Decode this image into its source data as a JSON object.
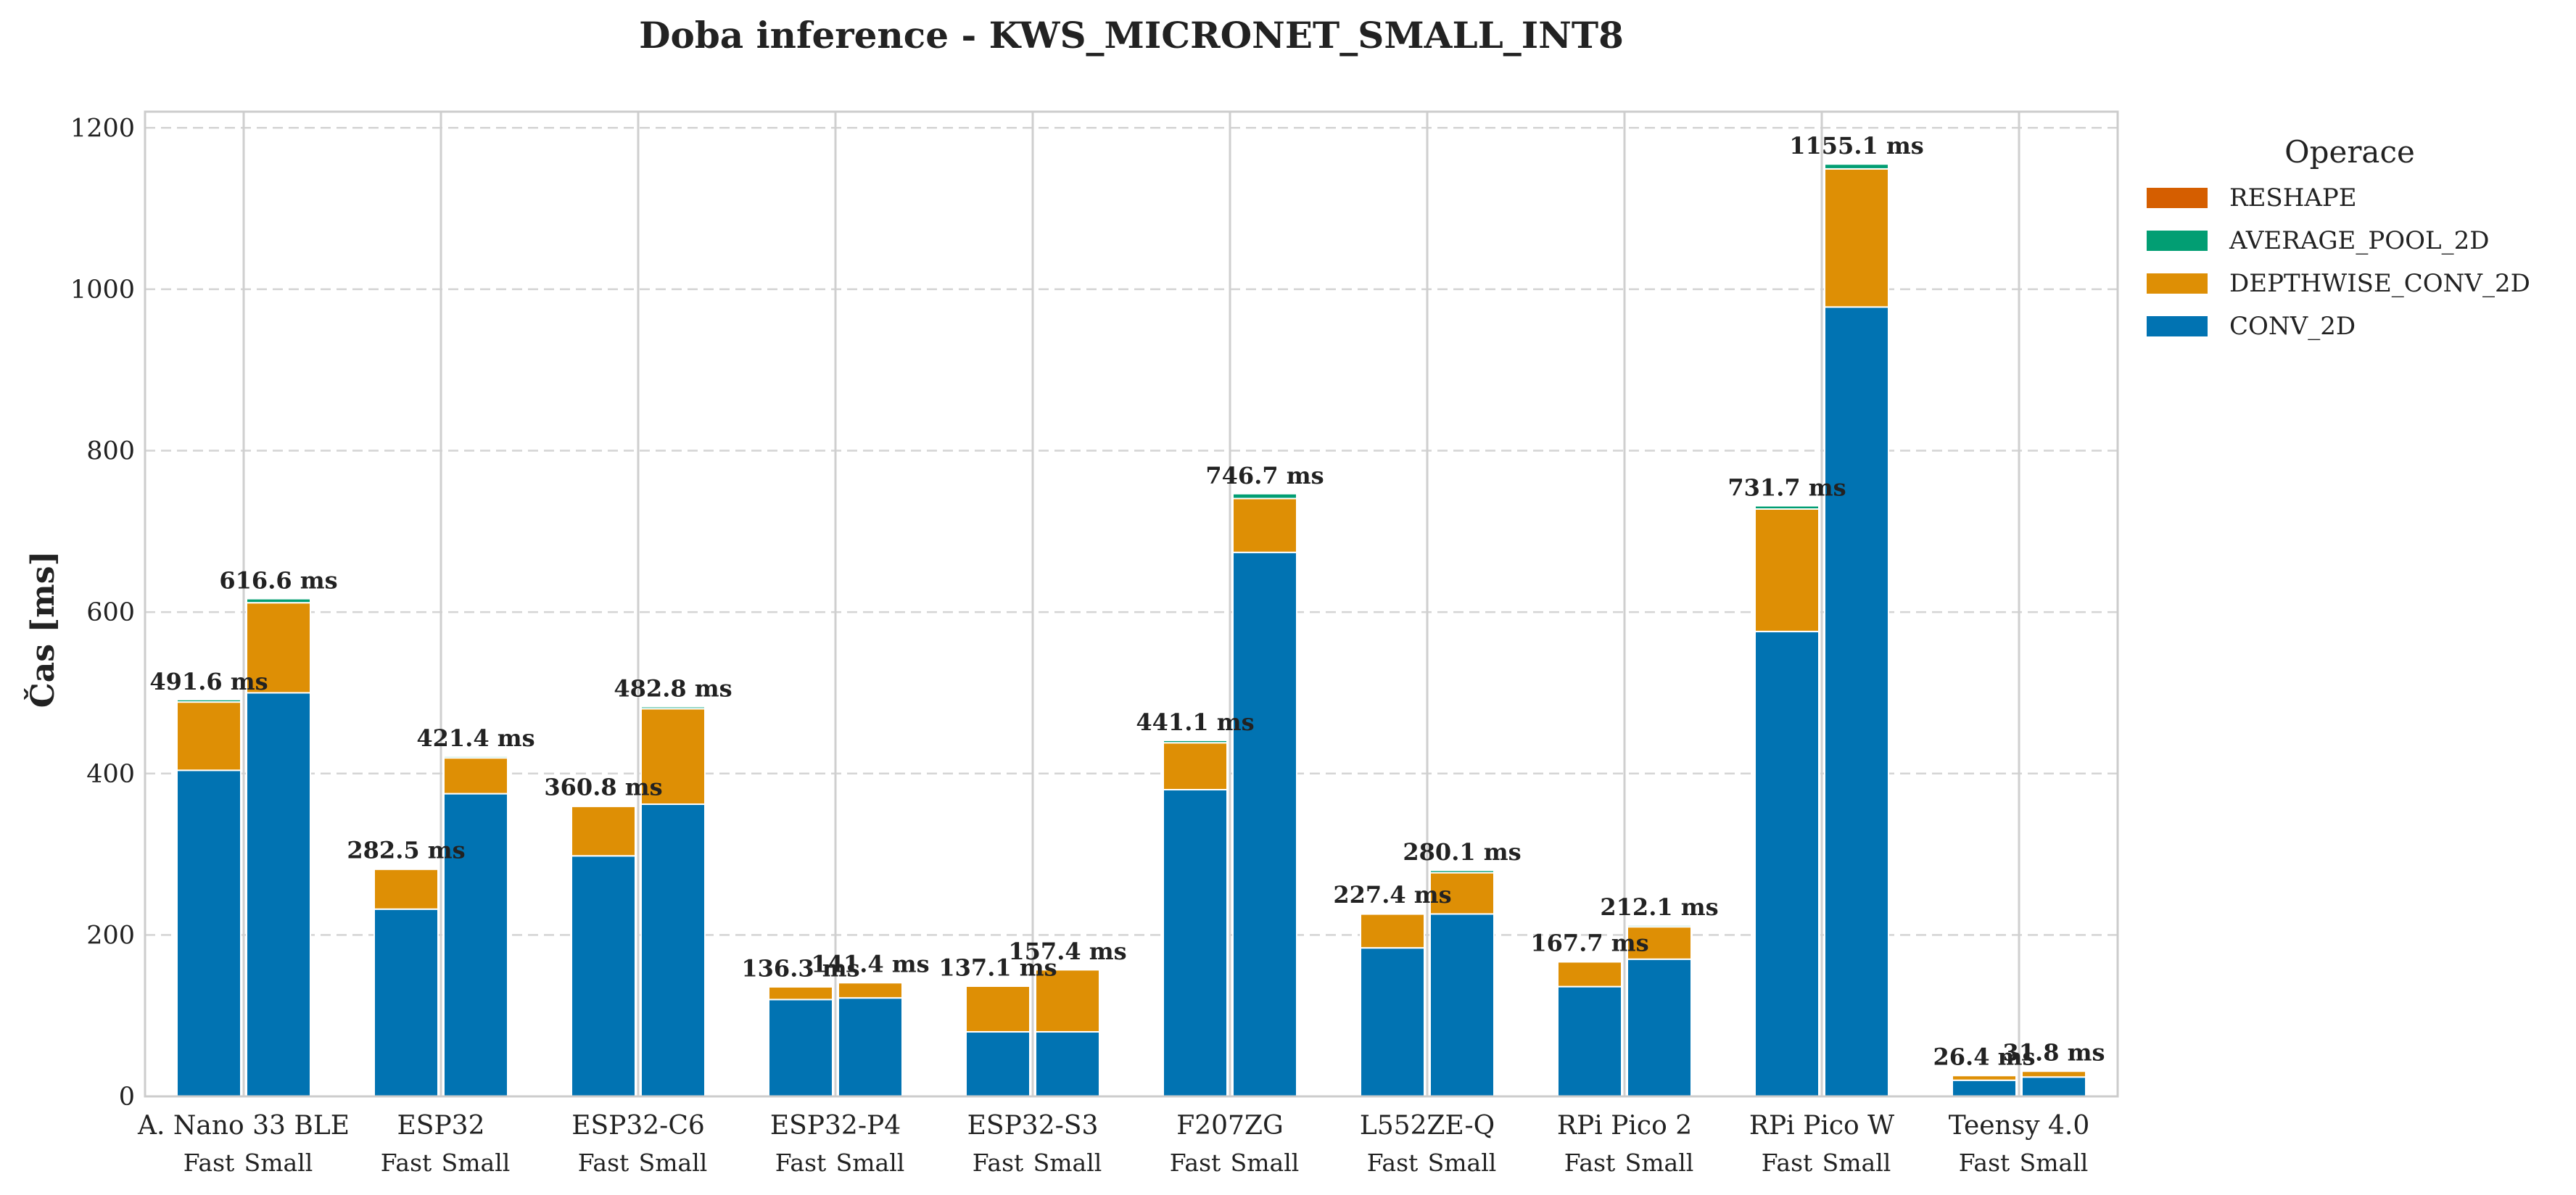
{
  "chart_data": {
    "type": "bar",
    "stacked": true,
    "title": "Doba inference - KWS_MICRONET_SMALL_INT8",
    "xlabel": "",
    "ylabel": "Čas [ms]",
    "ylim": [
      0,
      1220
    ],
    "yticks": [
      0,
      200,
      400,
      600,
      800,
      1000,
      1200
    ],
    "grid": true,
    "legend": {
      "title": "Operace",
      "position": "outside-right",
      "order": [
        "RESHAPE",
        "AVERAGE_POOL_2D",
        "DEPTHWISE_CONV_2D",
        "CONV_2D"
      ]
    },
    "colors": {
      "CONV_2D": "#0173b2",
      "DEPTHWISE_CONV_2D": "#de8f05",
      "AVERAGE_POOL_2D": "#029e73",
      "RESHAPE": "#d55e00"
    },
    "categories": [
      "A. Nano 33 BLE",
      "ESP32",
      "ESP32-C6",
      "ESP32-P4",
      "ESP32-S3",
      "F207ZG",
      "L552ZE-Q",
      "RPi Pico 2",
      "RPi Pico W",
      "Teensy 4.0"
    ],
    "subcategories": [
      "Fast",
      "Small"
    ],
    "series": [
      {
        "name": "CONV_2D",
        "values": [
          [
            404,
            500
          ],
          [
            232,
            375
          ],
          [
            298,
            362
          ],
          [
            120,
            122
          ],
          [
            80,
            80
          ],
          [
            380,
            674
          ],
          [
            184,
            226
          ],
          [
            136,
            170
          ],
          [
            576,
            978
          ],
          [
            20,
            24
          ]
        ]
      },
      {
        "name": "DEPTHWISE_CONV_2D",
        "values": [
          [
            84.6,
            111.6
          ],
          [
            49.5,
            44.4
          ],
          [
            61.3,
            118.3
          ],
          [
            15.8,
            18.9
          ],
          [
            56.6,
            76.9
          ],
          [
            58.1,
            66.7
          ],
          [
            41.9,
            51.1
          ],
          [
            30.7,
            40.1
          ],
          [
            151.7,
            171.1
          ],
          [
            5.9,
            7.3
          ]
        ]
      },
      {
        "name": "AVERAGE_POOL_2D",
        "values": [
          [
            3,
            5
          ],
          [
            1,
            2
          ],
          [
            1.5,
            2.5
          ],
          [
            0.5,
            0.5
          ],
          [
            0.5,
            0.5
          ],
          [
            3,
            6
          ],
          [
            1.5,
            3
          ],
          [
            1,
            2
          ],
          [
            4,
            6
          ],
          [
            0.5,
            0.5
          ]
        ]
      },
      {
        "name": "RESHAPE",
        "values": [
          [
            0,
            0
          ],
          [
            0,
            0
          ],
          [
            0,
            0
          ],
          [
            0,
            0
          ],
          [
            0,
            0
          ],
          [
            0,
            0
          ],
          [
            0,
            0
          ],
          [
            0,
            0
          ],
          [
            0,
            0
          ],
          [
            0,
            0
          ]
        ]
      }
    ],
    "totals": [
      [
        491.6,
        616.6
      ],
      [
        282.5,
        421.4
      ],
      [
        360.8,
        482.8
      ],
      [
        136.3,
        141.4
      ],
      [
        137.1,
        157.4
      ],
      [
        441.1,
        746.7
      ],
      [
        227.4,
        280.1
      ],
      [
        167.7,
        212.1
      ],
      [
        731.7,
        1155.1
      ],
      [
        26.4,
        31.8
      ]
    ],
    "total_label_suffix": " ms"
  }
}
